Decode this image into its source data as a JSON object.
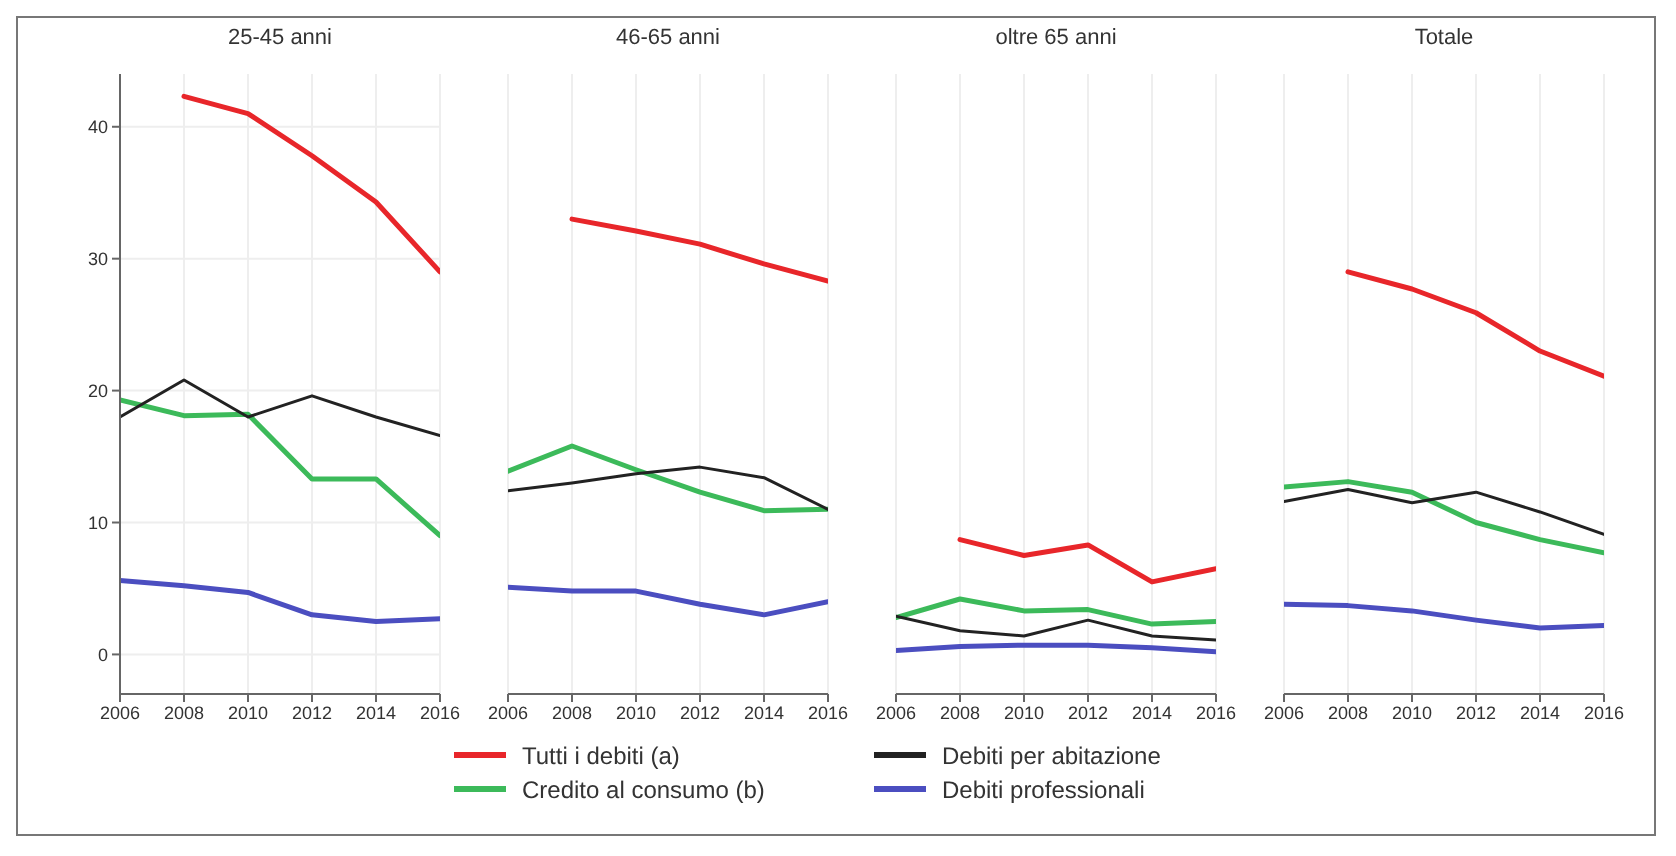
{
  "chart_data": [
    {
      "type": "line",
      "title": "25-45 anni",
      "x": [
        2006,
        2008,
        2010,
        2012,
        2014,
        2016
      ],
      "xlim": [
        2006,
        2016
      ],
      "xticks": [
        2006,
        2008,
        2010,
        2012,
        2014,
        2016
      ],
      "ylim": [
        -3,
        44
      ],
      "yticks": [
        0,
        10,
        20,
        30,
        40
      ],
      "grid": true,
      "legend": "bottom",
      "marker": "none",
      "line_style": "solid",
      "series": [
        {
          "name": "Tutti i debiti (a)",
          "color": "#e8262a",
          "values": [
            null,
            42.3,
            41,
            37.8,
            34.3,
            29
          ]
        },
        {
          "name": "Credito al consumo (b)",
          "color": "#3cba5a",
          "values": [
            19.3,
            18.1,
            18.2,
            13.3,
            13.3,
            9
          ]
        },
        {
          "name": "Debiti per abitazione",
          "color": "#222222",
          "values": [
            18,
            20.8,
            18,
            19.6,
            18,
            16.6
          ]
        },
        {
          "name": "Debiti professionali",
          "color": "#4b4ec0",
          "values": [
            5.6,
            5.2,
            4.7,
            3,
            2.5,
            2.7
          ]
        }
      ]
    },
    {
      "type": "line",
      "title": "46-65 anni",
      "x": [
        2006,
        2008,
        2010,
        2012,
        2014,
        2016
      ],
      "xlim": [
        2006,
        2016
      ],
      "xticks": [
        2006,
        2008,
        2010,
        2012,
        2014,
        2016
      ],
      "ylim": [
        -3,
        44
      ],
      "yticks": [
        0,
        10,
        20,
        30,
        40
      ],
      "grid": true,
      "tick_labels": "x",
      "marker": "none",
      "line_style": "solid",
      "series": [
        {
          "color": "#e8262a",
          "values": [
            null,
            33,
            32.1,
            31.1,
            29.6,
            28.3
          ]
        },
        {
          "color": "#3cba5a",
          "values": [
            13.9,
            15.8,
            14,
            12.3,
            10.9,
            11
          ]
        },
        {
          "color": "#222222",
          "values": [
            12.4,
            13,
            13.7,
            14.2,
            13.4,
            11
          ]
        },
        {
          "color": "#4b4ec0",
          "values": [
            5.1,
            4.8,
            4.8,
            3.8,
            3,
            4
          ]
        }
      ]
    },
    {
      "type": "line",
      "title": "oltre 65 anni",
      "x": [
        2006,
        2008,
        2010,
        2012,
        2014,
        2016
      ],
      "xlim": [
        2006,
        2016
      ],
      "xticks": [
        2006,
        2008,
        2010,
        2012,
        2014,
        2016
      ],
      "ylim": [
        -3,
        44
      ],
      "yticks": [
        0,
        10,
        20,
        30,
        40
      ],
      "grid": true,
      "tick_labels": "x",
      "marker": "none",
      "line_style": "solid",
      "series": [
        {
          "color": "#e8262a",
          "values": [
            null,
            8.7,
            7.5,
            8.3,
            5.5,
            6.5
          ]
        },
        {
          "color": "#3cba5a",
          "values": [
            2.8,
            4.2,
            3.3,
            3.4,
            2.3,
            2.5
          ]
        },
        {
          "color": "#222222",
          "values": [
            2.9,
            1.8,
            1.4,
            2.6,
            1.4,
            1.1
          ]
        },
        {
          "color": "#4b4ec0",
          "values": [
            0.3,
            0.6,
            0.7,
            0.7,
            0.5,
            0.2
          ]
        }
      ]
    },
    {
      "type": "line",
      "title": "Totale",
      "x": [
        2006,
        2008,
        2010,
        2012,
        2014,
        2016
      ],
      "xlim": [
        2006,
        2016
      ],
      "xticks": [
        2006,
        2008,
        2010,
        2012,
        2014,
        2016
      ],
      "ylim": [
        -3,
        44
      ],
      "yticks": [
        0,
        10,
        20,
        30,
        40
      ],
      "grid": true,
      "tick_labels": "x",
      "marker": "none",
      "line_style": "solid",
      "series": [
        {
          "color": "#e8262a",
          "values": [
            null,
            29,
            27.7,
            25.9,
            23,
            21.1
          ]
        },
        {
          "color": "#3cba5a",
          "values": [
            12.7,
            13.1,
            12.3,
            10,
            8.7,
            7.7
          ]
        },
        {
          "color": "#222222",
          "values": [
            11.6,
            12.5,
            11.5,
            12.3,
            10.8,
            9.1
          ]
        },
        {
          "color": "#4b4ec0",
          "values": [
            3.8,
            3.7,
            3.3,
            2.6,
            2,
            2.2
          ]
        }
      ]
    }
  ]
}
